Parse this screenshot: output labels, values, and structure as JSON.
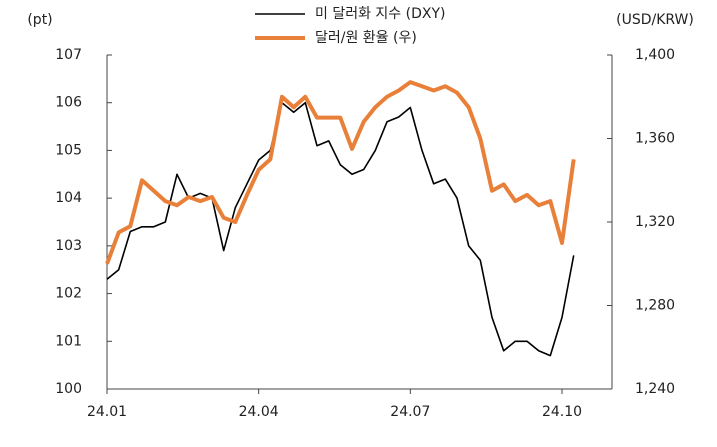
{
  "chart_data": {
    "type": "line",
    "y_label": "(pt)",
    "y2_label": "(USD/KRW)",
    "categories": [
      "24.01",
      null,
      null,
      null,
      null,
      null,
      null,
      null,
      null,
      null,
      null,
      null,
      null,
      "24.04",
      null,
      null,
      null,
      null,
      null,
      null,
      null,
      null,
      null,
      null,
      null,
      null,
      "24.07",
      null,
      null,
      null,
      null,
      null,
      null,
      null,
      null,
      null,
      null,
      null,
      null,
      "24.10",
      null
    ],
    "series": [
      {
        "name": "미 달러화 지수 (DXY)",
        "color": "#000000",
        "axis": "y",
        "values": [
          102.3,
          102.5,
          103.3,
          103.4,
          103.4,
          103.5,
          104.5,
          104.0,
          104.1,
          104.0,
          102.9,
          103.8,
          104.3,
          104.8,
          105.0,
          106.0,
          105.8,
          106.0,
          105.1,
          105.2,
          104.7,
          104.5,
          104.6,
          105.0,
          105.6,
          105.7,
          105.9,
          105.0,
          104.3,
          104.4,
          104.0,
          103.0,
          102.7,
          101.5,
          100.8,
          101.0,
          101.0,
          100.8,
          100.7,
          101.5,
          102.8
        ]
      },
      {
        "name": "달러/원 환율 (우)",
        "color": "#e8803a",
        "axis": "y2",
        "values": [
          1300,
          1315,
          1318,
          1340,
          1335,
          1330,
          1328,
          1332,
          1330,
          1332,
          1322,
          1320,
          1333,
          1345,
          1350,
          1380,
          1375,
          1380,
          1370,
          1370,
          1370,
          1355,
          1368,
          1375,
          1380,
          1383,
          1387,
          1385,
          1383,
          1385,
          1382,
          1375,
          1360,
          1335,
          1338,
          1330,
          1333,
          1328,
          1330,
          1310,
          1350
        ]
      }
    ],
    "ylim": [
      100,
      107
    ],
    "yticks": [
      100,
      101,
      102,
      103,
      104,
      105,
      106,
      107
    ],
    "y2lim": [
      1240,
      1400
    ],
    "y2ticks": [
      {
        "value": 1240,
        "label": "1,240"
      },
      {
        "value": 1280,
        "label": "1,280"
      },
      {
        "value": 1320,
        "label": "1,320"
      },
      {
        "value": 1360,
        "label": "1,360"
      },
      {
        "value": 1400,
        "label": "1,400"
      }
    ],
    "grid": false
  }
}
